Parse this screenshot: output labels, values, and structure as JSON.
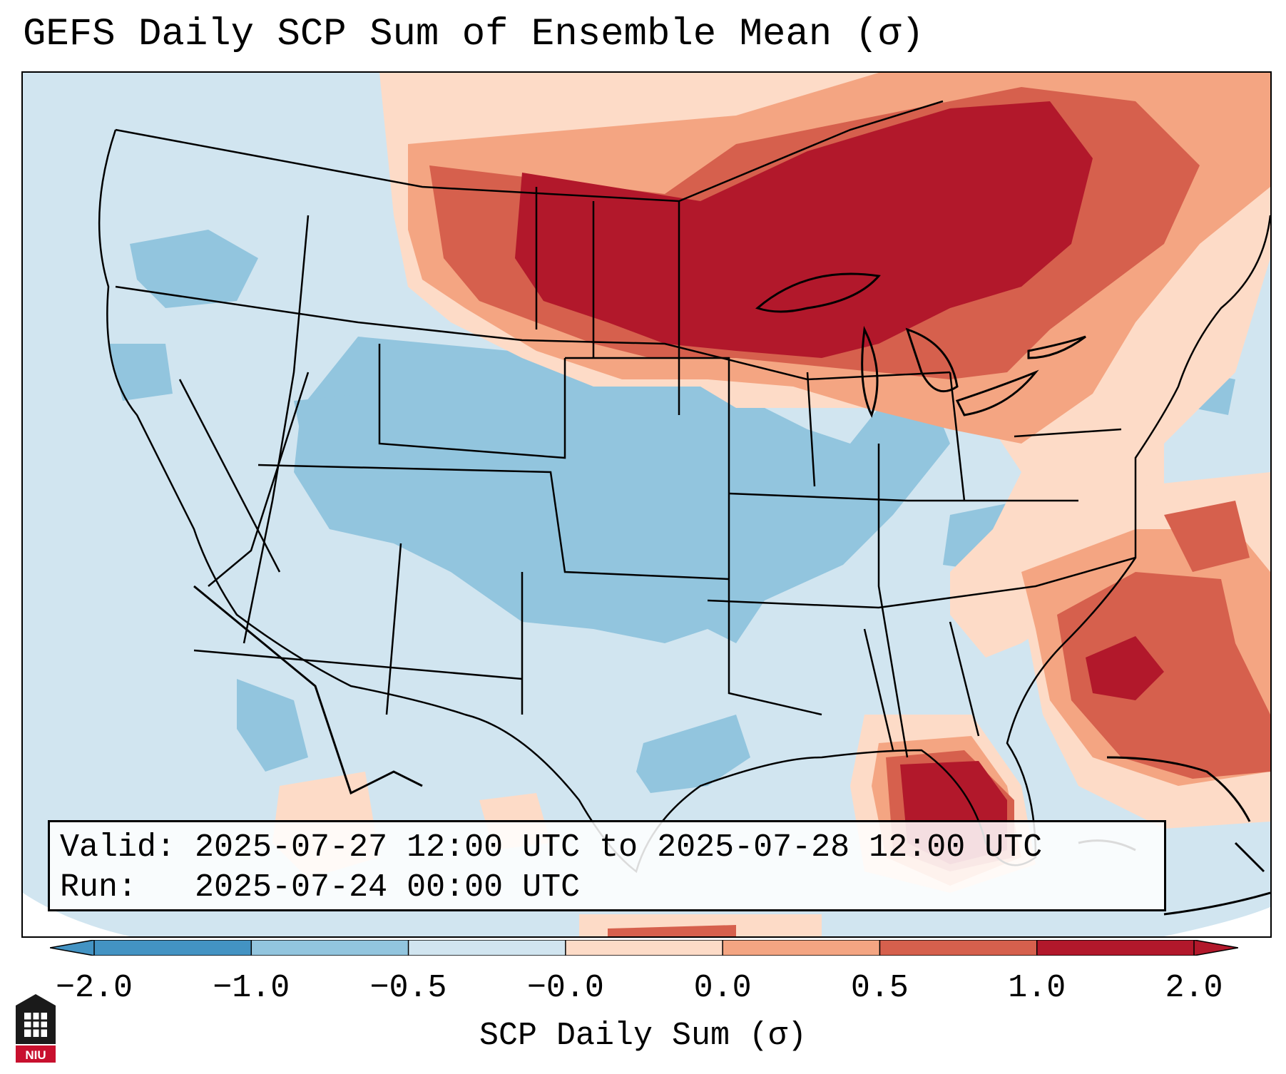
{
  "title": "GEFS Daily SCP Sum of Ensemble Mean (σ)",
  "info": {
    "valid_line": "Valid: 2025-07-27 12:00 UTC to 2025-07-28 12:00 UTC",
    "run_line": "Run:   2025-07-24 00:00 UTC"
  },
  "colorbar": {
    "label": "SCP Daily Sum (σ)",
    "ticks": [
      "−2.0",
      "−1.0",
      "−0.5",
      "−0.0",
      "0.0",
      "0.5",
      "1.0",
      "2.0"
    ],
    "colors": [
      "#4393c3",
      "#92c5de",
      "#d1e5f0",
      "#f7f7f7",
      "#fddbc7",
      "#f4a582",
      "#d6604d",
      "#b2182b"
    ],
    "extend": "both"
  },
  "logo": {
    "text": "NIU",
    "color": "#c8102e"
  },
  "map": {
    "region": "Continental United States",
    "fill_color": "#d1e5f0"
  }
}
